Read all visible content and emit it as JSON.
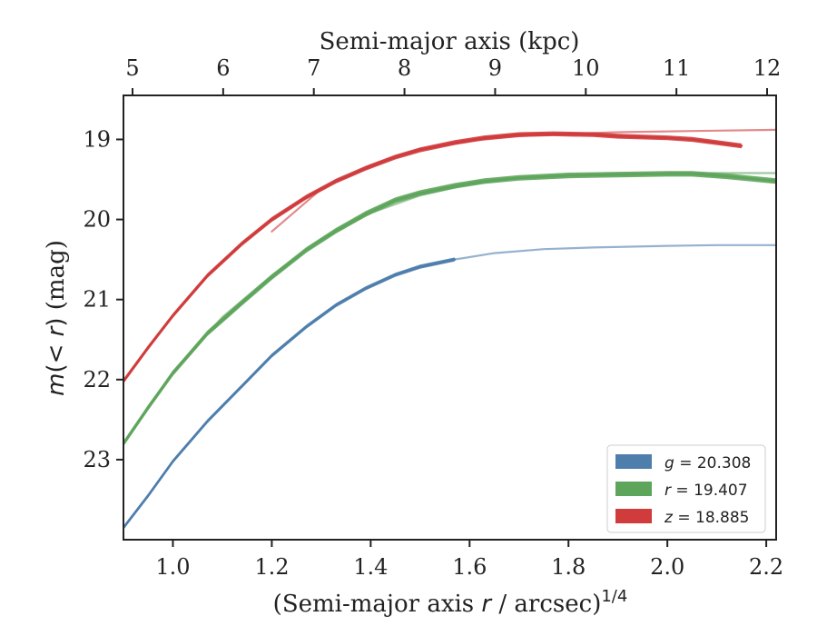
{
  "chart_data": {
    "type": "line",
    "top_axis": {
      "label": "Semi-major axis (kpc)",
      "ticks": [
        "5",
        "6",
        "7",
        "8",
        "9",
        "10",
        "11",
        "12"
      ],
      "tick_values": [
        5,
        6,
        7,
        8,
        9,
        10,
        11,
        12
      ],
      "xlim": [
        4.9,
        12.1
      ]
    },
    "xlabel_parts": {
      "main": "(Semi-major axis ",
      "var": "r",
      "unit": " / arcsec)",
      "exponent": "1/4"
    },
    "ylabel_parts": {
      "m": "m",
      "open": "(",
      "cond": "< r",
      "close": ")",
      "unit": " (mag)"
    },
    "xlim": [
      0.9,
      2.22
    ],
    "ylim": [
      18.45,
      24.0
    ],
    "y_inverted": true,
    "x_ticks": [
      "1.0",
      "1.2",
      "1.4",
      "1.6",
      "1.8",
      "2.0",
      "2.2"
    ],
    "x_tick_values": [
      1.0,
      1.2,
      1.4,
      1.6,
      1.8,
      2.0,
      2.2
    ],
    "y_ticks": [
      "19",
      "20",
      "21",
      "22",
      "23"
    ],
    "y_tick_values": [
      19,
      20,
      21,
      22,
      23
    ],
    "legend_position": "lower right",
    "grid": false,
    "series": [
      {
        "legend": {
          "var": "g",
          "value": "20.308"
        },
        "color": "#4e7eac",
        "extrapolation": {
          "x": [
            1.57,
            1.65,
            1.75,
            1.85,
            2.0,
            2.1,
            2.22
          ],
          "y": [
            20.5,
            20.42,
            20.37,
            20.35,
            20.33,
            20.32,
            20.32
          ]
        },
        "measured": {
          "x": [
            0.9,
            0.95,
            1.0,
            1.07,
            1.14,
            1.2,
            1.27,
            1.33,
            1.39,
            1.45,
            1.5,
            1.57
          ],
          "y": [
            23.85,
            23.45,
            23.02,
            22.52,
            22.08,
            21.7,
            21.34,
            21.07,
            20.86,
            20.69,
            20.59,
            20.5
          ],
          "band": 0.05
        }
      },
      {
        "legend": {
          "var": "r",
          "value": "19.407"
        },
        "color": "#5ea55c",
        "extrapolation": {
          "x": [
            0.9,
            1.0,
            1.1,
            1.2,
            1.3,
            1.4,
            1.5,
            1.6,
            1.7,
            1.8,
            1.9,
            2.0,
            2.1,
            2.22
          ],
          "y": [
            22.8,
            21.9,
            21.22,
            20.7,
            20.25,
            19.92,
            19.7,
            19.56,
            19.48,
            19.45,
            19.43,
            19.42,
            19.42,
            19.42
          ]
        },
        "measured": {
          "x": [
            0.9,
            0.95,
            1.0,
            1.07,
            1.14,
            1.2,
            1.27,
            1.33,
            1.39,
            1.45,
            1.5,
            1.57,
            1.63,
            1.7,
            1.8,
            1.9,
            2.0,
            2.05,
            2.12,
            2.22
          ],
          "y": [
            22.8,
            22.35,
            21.92,
            21.42,
            21.04,
            20.72,
            20.38,
            20.14,
            19.93,
            19.76,
            19.67,
            19.58,
            19.52,
            19.48,
            19.45,
            19.44,
            19.43,
            19.43,
            19.46,
            19.52
          ],
          "band": 0.07
        }
      },
      {
        "legend": {
          "var": "z",
          "value": "18.885"
        },
        "color": "#d03b3c",
        "extrapolation": {
          "x": [
            1.2,
            1.3,
            1.4,
            1.5,
            1.6,
            1.7,
            1.8,
            1.9,
            2.0,
            2.1,
            2.22
          ],
          "y": [
            20.15,
            19.62,
            19.32,
            19.12,
            19.02,
            18.96,
            18.93,
            18.91,
            18.9,
            18.89,
            18.88
          ]
        },
        "measured": {
          "x": [
            0.9,
            0.95,
            1.0,
            1.07,
            1.14,
            1.2,
            1.27,
            1.33,
            1.39,
            1.45,
            1.5,
            1.57,
            1.63,
            1.7,
            1.77,
            1.85,
            1.9,
            2.0,
            2.05,
            2.1,
            2.15
          ],
          "y": [
            22.02,
            21.6,
            21.2,
            20.7,
            20.3,
            20.0,
            19.72,
            19.52,
            19.36,
            19.22,
            19.13,
            19.04,
            18.98,
            18.94,
            18.93,
            18.94,
            18.96,
            18.98,
            19.0,
            19.04,
            19.08
          ],
          "band": 0.06
        }
      }
    ]
  }
}
